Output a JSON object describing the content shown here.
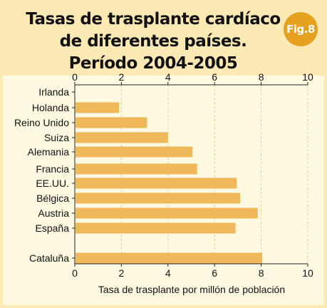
{
  "title_lines": [
    "Tasas de trasplante cardíaco",
    "de diferentes países.",
    "Período 2004-2005"
  ],
  "figure_badge": "Fig.8",
  "colors": {
    "background": "#fde9b4",
    "panel": "#fff9e2",
    "bar": "#efb95b",
    "badge": "#e6a121",
    "grid": "#e9c98e"
  },
  "chart_data": {
    "type": "bar",
    "orientation": "horizontal",
    "categories": [
      "Irlanda",
      "Holanda",
      "Reino Unido",
      "Suiza",
      "Alemania",
      "Francia",
      "EE.UU.",
      "Bélgica",
      "Austria",
      "España",
      "Cataluña"
    ],
    "values": [
      0,
      1.9,
      3.1,
      4.0,
      5.05,
      5.25,
      6.95,
      7.1,
      7.85,
      6.9,
      8.05
    ],
    "xlabel": "Tasa de trasplante por millón de población",
    "ylabel": "",
    "xlim": [
      0,
      10
    ],
    "xticks": [
      0,
      2,
      4,
      6,
      8,
      10
    ],
    "grid": "vertical dashed",
    "axes": "top and bottom"
  }
}
